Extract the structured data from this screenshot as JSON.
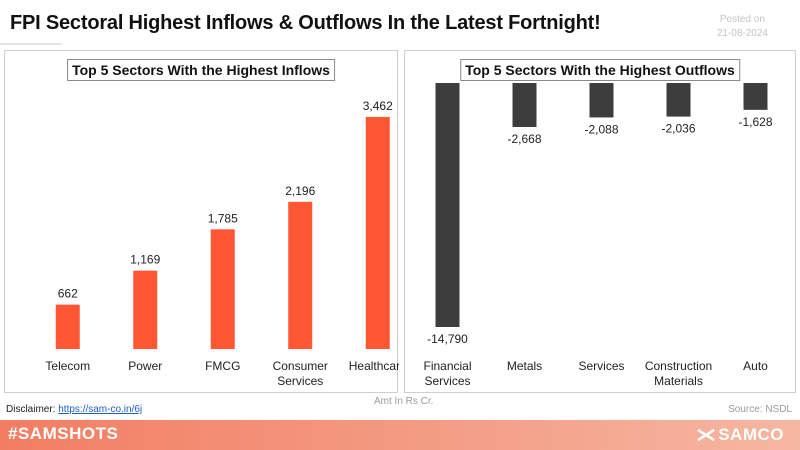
{
  "header": {
    "title": "FPI Sectoral Highest Inflows & Outflows In the Latest Fortnight!",
    "posted_label": "Posted on",
    "posted_date": "21-08-2024"
  },
  "footer": {
    "unit_note": "Amt In Rs Cr.",
    "disclaimer_label": "Disclaimer:",
    "disclaimer_link": "https://sam-co.in/6j",
    "source": "Source: NSDL",
    "hashtag": "#SAMSHOTS",
    "brand": "SAMCO"
  },
  "colors": {
    "inflow_bar": "#ff5733",
    "outflow_bar": "#3d3d3d",
    "footer_band": "#f27d62"
  },
  "chart_data": [
    {
      "type": "bar",
      "title": "Top 5 Sectors With the Highest Inflows",
      "categories": [
        [
          "Telecom"
        ],
        [
          "Power"
        ],
        [
          "FMCG"
        ],
        [
          "Consumer",
          "Services"
        ],
        [
          "Healthcare"
        ]
      ],
      "values": [
        662,
        1169,
        1785,
        2196,
        3462
      ],
      "value_labels": [
        "662",
        "1,169",
        "1,785",
        "2,196",
        "3,462"
      ],
      "ylim": [
        0,
        3700
      ],
      "grid": false
    },
    {
      "type": "bar",
      "title": "Top 5 Sectors With the Highest Outflows",
      "categories": [
        [
          "Financial",
          "Services"
        ],
        [
          "Metals"
        ],
        [
          "Services"
        ],
        [
          "Construction",
          "Materials"
        ],
        [
          "Auto"
        ]
      ],
      "values": [
        -14790,
        -2668,
        -2088,
        -2036,
        -1628
      ],
      "value_labels": [
        "-14,790",
        "-2,668",
        "-2,088",
        "-2,036",
        "-1,628"
      ],
      "ylim": [
        -14790,
        0
      ],
      "grid": false
    }
  ]
}
